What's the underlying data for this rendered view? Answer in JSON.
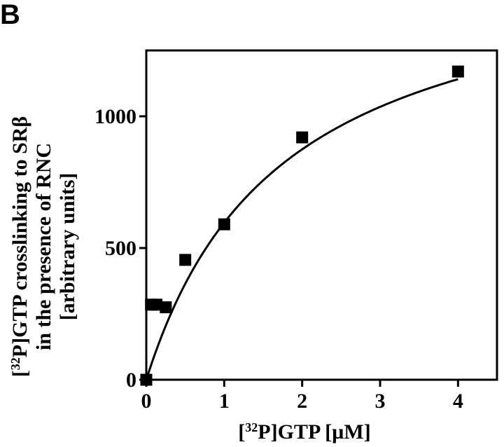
{
  "panel_label": "B",
  "chart_data": {
    "type": "scatter",
    "title": "",
    "xlabel": {
      "pre": "[",
      "sup": "32",
      "post": "P]GTP  [µM]"
    },
    "ylabel": {
      "line1": {
        "pre": "[",
        "sup": "32",
        "post": "P]GTP crosslinking to SRβ"
      },
      "line2": "in the presence of RNC",
      "line3": "[arbitrary units]"
    },
    "xlim": [
      0,
      4.5
    ],
    "ylim": [
      0,
      1250
    ],
    "xticks": [
      0,
      1,
      2,
      3,
      4
    ],
    "yticks": [
      0,
      500,
      1000
    ],
    "xtick_labels": [
      "0",
      "1",
      "2",
      "3",
      "4"
    ],
    "ytick_labels": [
      "0",
      "500",
      "1000"
    ],
    "grid": false,
    "legend": "none",
    "series": [
      {
        "points": [
          {
            "x": 0,
            "y": 0
          },
          {
            "x": 0.06,
            "y": 285
          },
          {
            "x": 0.13,
            "y": 285
          },
          {
            "x": 0.25,
            "y": 275
          },
          {
            "x": 0.5,
            "y": 455
          },
          {
            "x": 1.0,
            "y": 590
          },
          {
            "x": 2.0,
            "y": 920
          },
          {
            "x": 4.0,
            "y": 1170
          }
        ]
      }
    ],
    "fit_curve": {
      "type": "hyperbolic",
      "vmax": 1640,
      "km": 1.75,
      "x_range": [
        0,
        4.0
      ]
    },
    "colors": {
      "marker": "#000000",
      "line": "#000000"
    }
  }
}
